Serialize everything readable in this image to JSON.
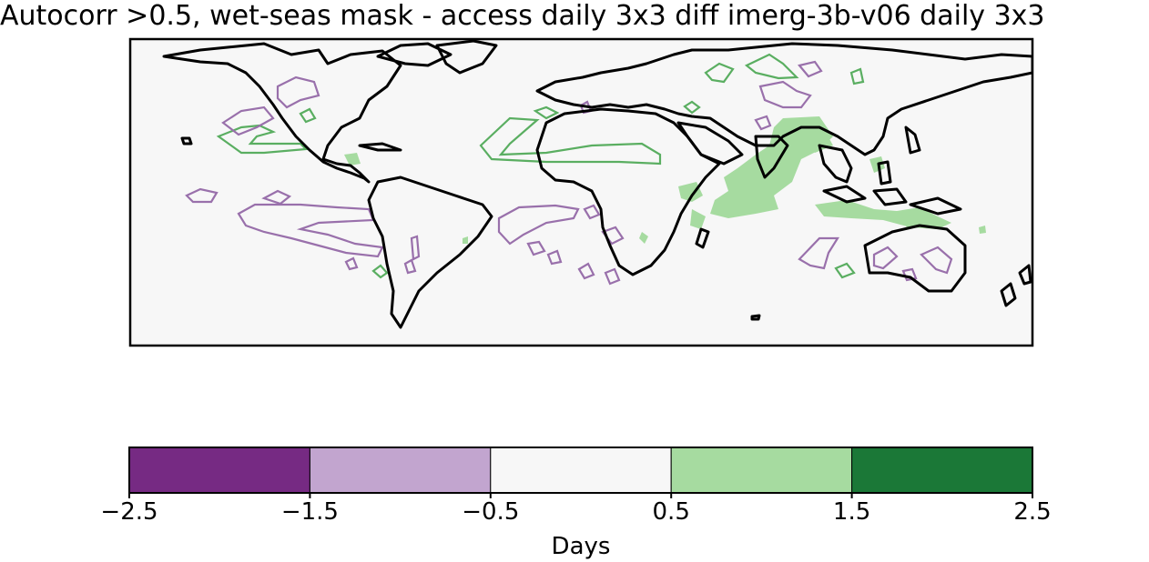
{
  "title": "Autocorr >0.5, wet-seas mask - access daily 3x3 diff imerg-3b-v06 daily 3x3",
  "map": {
    "ocean_color": "#f7f7f7",
    "land_outline_color": "#000000",
    "positive_contour_color": "#5aae61",
    "negative_contour_color": "#9970ab",
    "positive_fill_color": "#a6dba0"
  },
  "colorbar": {
    "label": "Days",
    "bins": [
      {
        "from": -2.5,
        "to": -1.5,
        "color": "#762a83"
      },
      {
        "from": -1.5,
        "to": -0.5,
        "color": "#c2a5cf"
      },
      {
        "from": -0.5,
        "to": 0.5,
        "color": "#f7f7f7"
      },
      {
        "from": 0.5,
        "to": 1.5,
        "color": "#a6dba0"
      },
      {
        "from": 1.5,
        "to": 2.5,
        "color": "#1b7837"
      }
    ],
    "ticks": [
      "−2.5",
      "−1.5",
      "−0.5",
      "0.5",
      "1.5",
      "2.5"
    ]
  }
}
